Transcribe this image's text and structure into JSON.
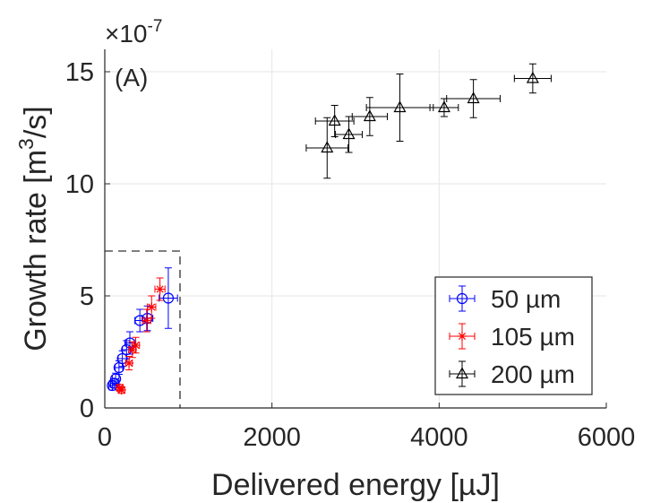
{
  "chart_data": {
    "type": "scatter",
    "panel_label": "(A)",
    "exponent_label": {
      "base": "×10",
      "power": "-7"
    },
    "xlabel": "Delivered energy [µJ]",
    "ylabel": {
      "prefix": "Growth rate [m",
      "sup": "3",
      "suffix": "/s]"
    },
    "xlim": [
      0,
      6000
    ],
    "ylim": [
      0,
      16
    ],
    "xticks": [
      0,
      2000,
      4000,
      6000
    ],
    "yticks": [
      0,
      5,
      10,
      15
    ],
    "xtick_labels": [
      "0",
      "2000",
      "4000",
      "6000"
    ],
    "ytick_labels": [
      "0",
      "5",
      "10",
      "15"
    ],
    "grid": true,
    "zoom_box": {
      "x": [
        0,
        900
      ],
      "y": [
        0,
        7
      ]
    },
    "legend_position": "bottom-right",
    "series": [
      {
        "name": "50 µm",
        "marker": "circle",
        "color": "#0000ff",
        "points": [
          {
            "x": 90,
            "y": 1.0,
            "xerr": 40,
            "yerr": 0.2
          },
          {
            "x": 110,
            "y": 1.1,
            "xerr": 40,
            "yerr": 0.2
          },
          {
            "x": 130,
            "y": 1.3,
            "xerr": 40,
            "yerr": 0.25
          },
          {
            "x": 170,
            "y": 1.8,
            "xerr": 45,
            "yerr": 0.3
          },
          {
            "x": 210,
            "y": 2.2,
            "xerr": 50,
            "yerr": 0.35
          },
          {
            "x": 260,
            "y": 2.6,
            "xerr": 50,
            "yerr": 0.4
          },
          {
            "x": 300,
            "y": 2.9,
            "xerr": 55,
            "yerr": 0.5
          },
          {
            "x": 420,
            "y": 3.9,
            "xerr": 60,
            "yerr": 0.5
          },
          {
            "x": 510,
            "y": 4.0,
            "xerr": 65,
            "yerr": 0.55
          },
          {
            "x": 760,
            "y": 4.9,
            "xerr": 110,
            "yerr": 1.35
          }
        ]
      },
      {
        "name": "105 µm",
        "marker": "asterisk",
        "color": "#ff0000",
        "points": [
          {
            "x": 180,
            "y": 0.9,
            "xerr": 40,
            "yerr": 0.15
          },
          {
            "x": 200,
            "y": 0.8,
            "xerr": 40,
            "yerr": 0.15
          },
          {
            "x": 290,
            "y": 2.0,
            "xerr": 40,
            "yerr": 0.3
          },
          {
            "x": 330,
            "y": 2.6,
            "xerr": 45,
            "yerr": 0.35
          },
          {
            "x": 370,
            "y": 2.8,
            "xerr": 45,
            "yerr": 0.35
          },
          {
            "x": 500,
            "y": 3.9,
            "xerr": 50,
            "yerr": 0.5
          },
          {
            "x": 560,
            "y": 4.5,
            "xerr": 50,
            "yerr": 0.5
          },
          {
            "x": 660,
            "y": 5.3,
            "xerr": 60,
            "yerr": 0.5
          }
        ]
      },
      {
        "name": "200 µm",
        "marker": "triangle",
        "color": "#000000",
        "points": [
          {
            "x": 2660,
            "y": 11.6,
            "xerr": 250,
            "yerr": 1.35
          },
          {
            "x": 2750,
            "y": 12.8,
            "xerr": 230,
            "yerr": 0.7
          },
          {
            "x": 2920,
            "y": 12.2,
            "xerr": 160,
            "yerr": 0.8
          },
          {
            "x": 3170,
            "y": 13.0,
            "xerr": 210,
            "yerr": 0.85
          },
          {
            "x": 3530,
            "y": 13.4,
            "xerr": 400,
            "yerr": 1.5
          },
          {
            "x": 4060,
            "y": 13.4,
            "xerr": 170,
            "yerr": 0.4
          },
          {
            "x": 4410,
            "y": 13.8,
            "xerr": 320,
            "yerr": 0.85
          },
          {
            "x": 5120,
            "y": 14.7,
            "xerr": 220,
            "yerr": 0.65
          }
        ]
      }
    ]
  }
}
